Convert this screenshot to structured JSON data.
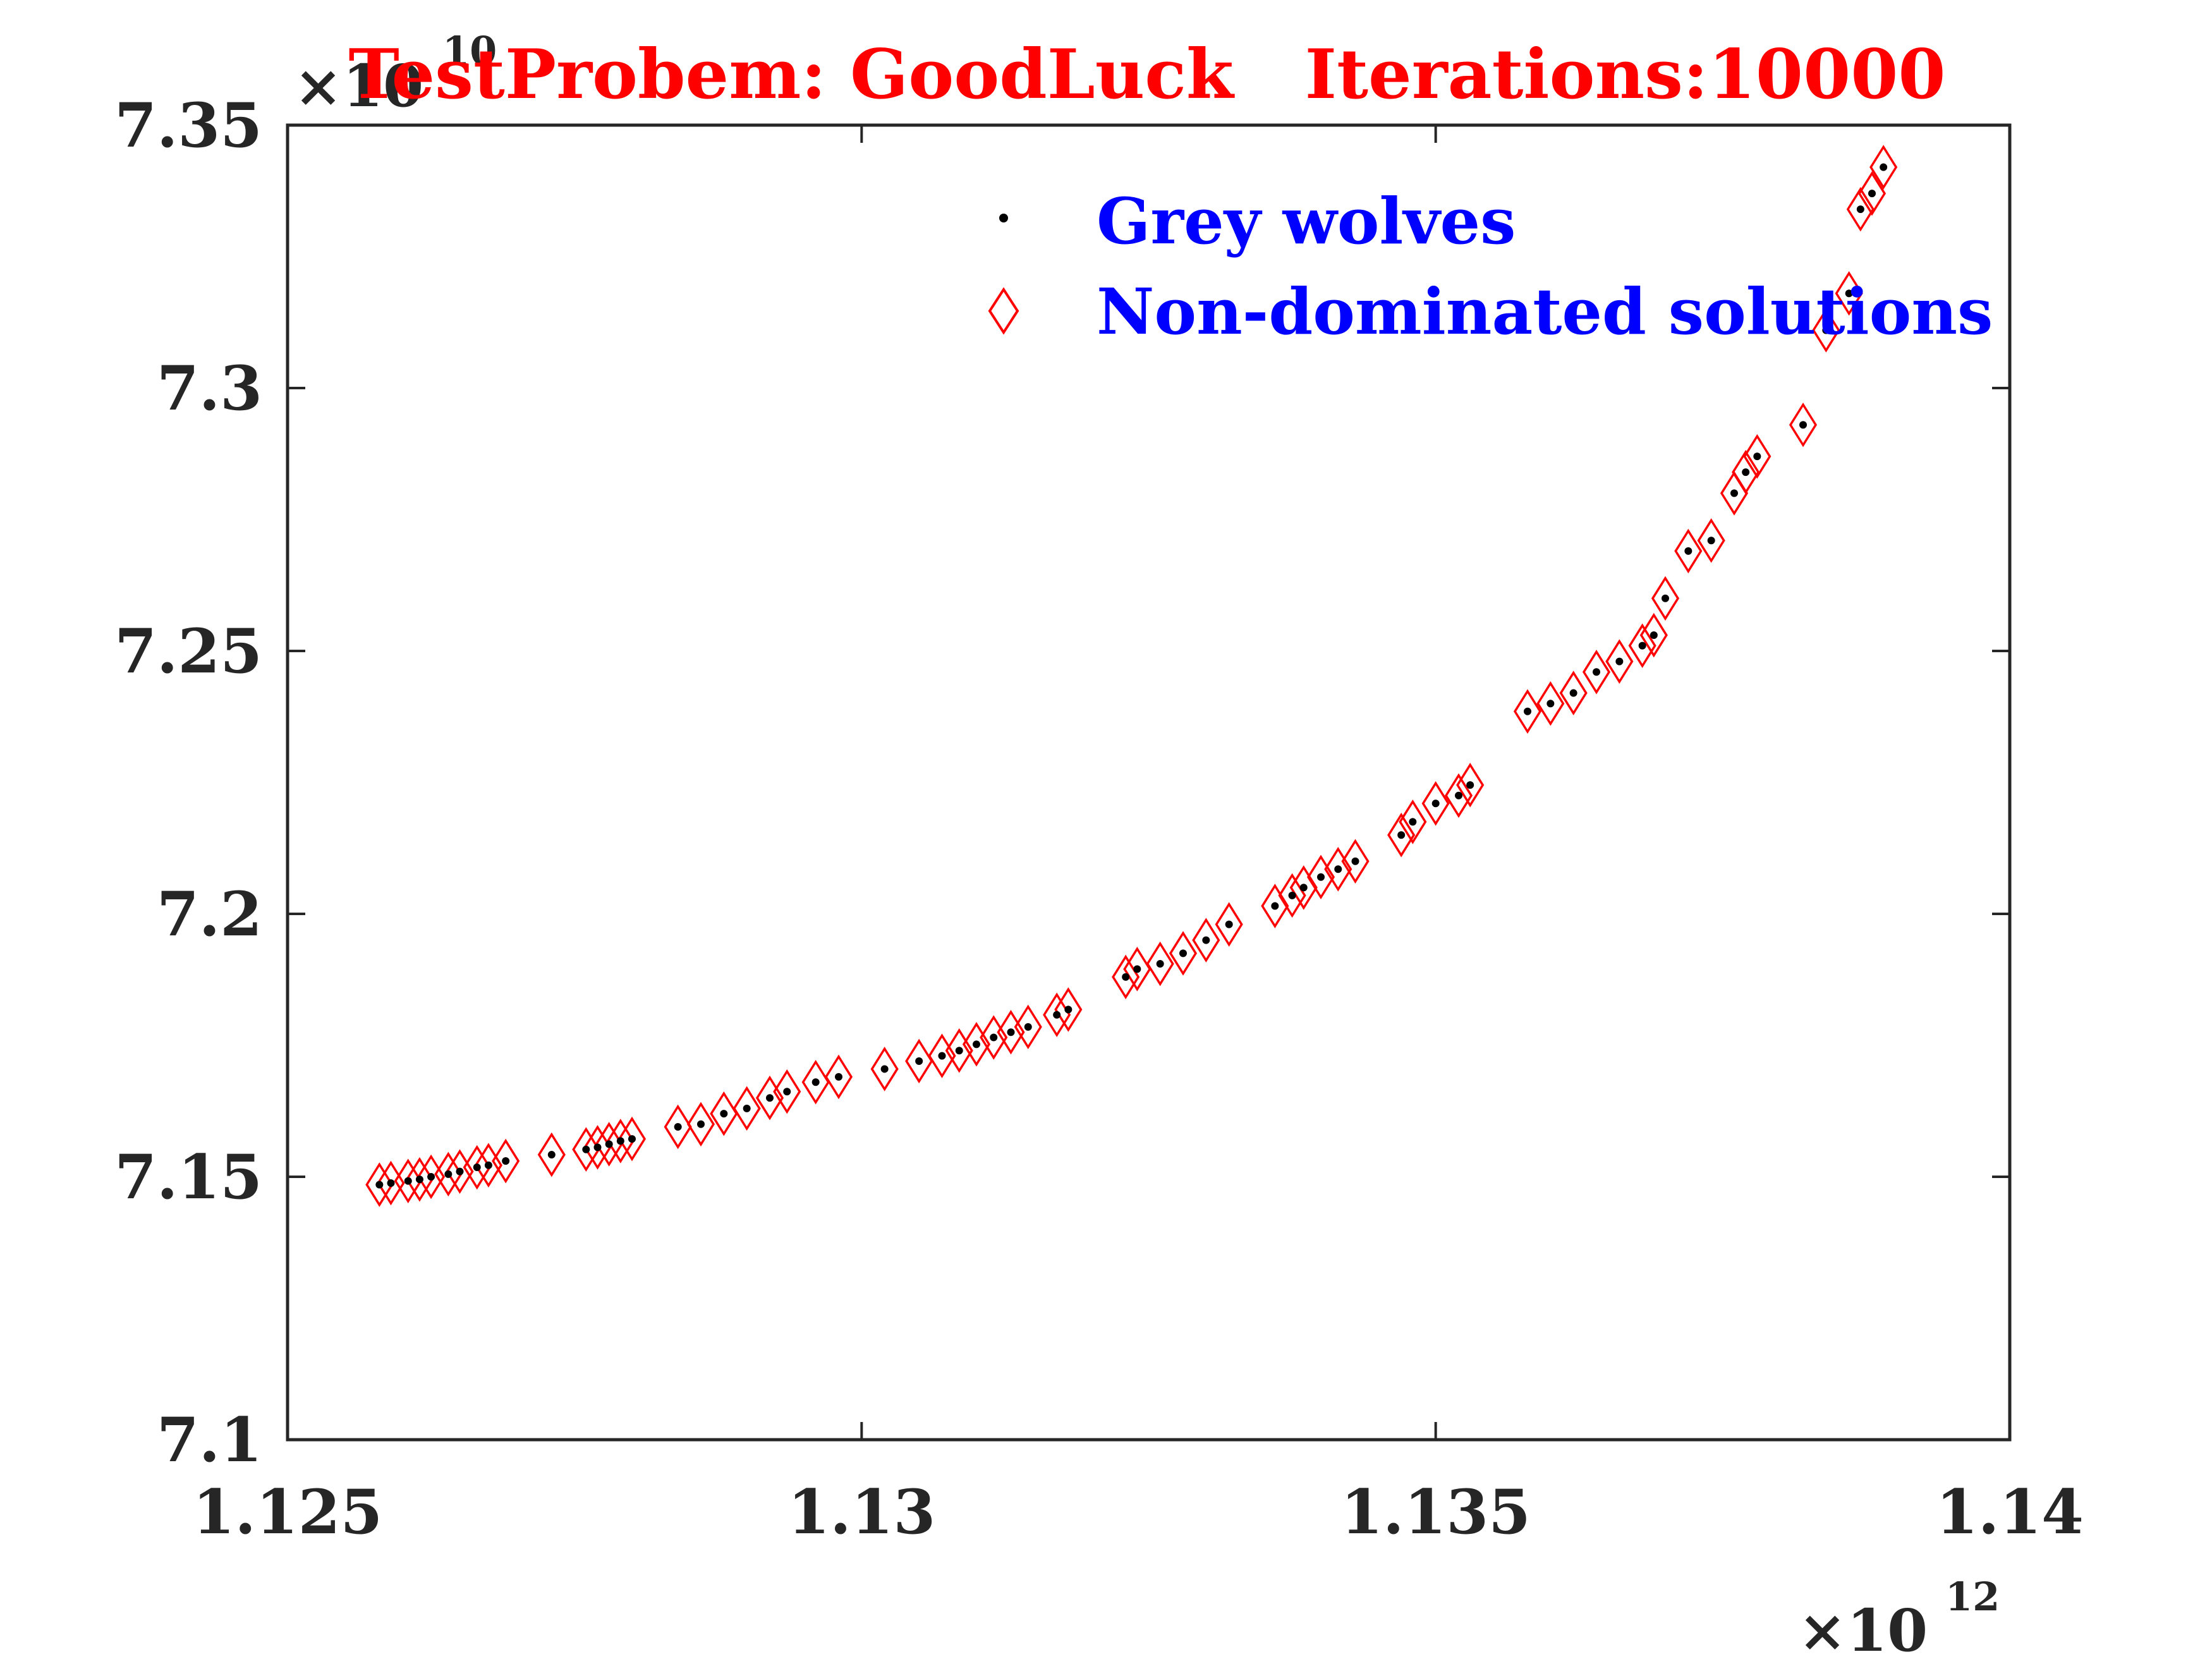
{
  "chart_data": {
    "type": "scatter",
    "title": "TestProbem: GoodLuck   Iterations:10000",
    "xlabel": "",
    "ylabel": "",
    "x_exponent_label": "×10",
    "x_exponent_power": "12",
    "y_exponent_label": "×10",
    "y_exponent_power": "10",
    "xlim": [
      1.125,
      1.14
    ],
    "ylim": [
      7.1,
      7.35
    ],
    "x_ticks": [
      1.125,
      1.13,
      1.135,
      1.14
    ],
    "x_tick_labels": [
      "1.125",
      "1.13",
      "1.135",
      "1.14"
    ],
    "y_ticks": [
      7.1,
      7.15,
      7.2,
      7.25,
      7.3,
      7.35
    ],
    "y_tick_labels": [
      "7.1",
      "7.15",
      "7.2",
      "7.25",
      "7.3",
      "7.35"
    ],
    "grid": false,
    "legend_position": "top-right",
    "colors": {
      "wolves": "#000000",
      "nondominated": "#ff0000",
      "title": "#ff0000",
      "legend_text": "#0000ff",
      "axes": "#262626"
    },
    "series": [
      {
        "name": "Grey wolves",
        "marker": "dot",
        "x": [
          1.1258,
          1.1259,
          1.12605,
          1.12615,
          1.12625,
          1.1264,
          1.1265,
          1.12665,
          1.12675,
          1.1269,
          1.1273,
          1.1276,
          1.1277,
          1.1278,
          1.1279,
          1.128,
          1.1284,
          1.1286,
          1.1288,
          1.129,
          1.1292,
          1.12935,
          1.1296,
          1.1298,
          1.1302,
          1.1305,
          1.1307,
          1.13085,
          1.131,
          1.13115,
          1.1313,
          1.13145,
          1.1317,
          1.1318,
          1.1323,
          1.1324,
          1.1326,
          1.1328,
          1.133,
          1.1332,
          1.1336,
          1.13375,
          1.13385,
          1.134,
          1.13415,
          1.1343,
          1.1347,
          1.1348,
          1.135,
          1.1352,
          1.1353,
          1.1358,
          1.136,
          1.1362,
          1.1364,
          1.1366,
          1.1368,
          1.1369,
          1.137,
          1.1372,
          1.1374,
          1.1376,
          1.1377,
          1.1378,
          1.1382,
          1.1384,
          1.1386,
          1.1387,
          1.1388,
          1.1389
        ],
        "y": [
          7.1485,
          7.1488,
          7.1492,
          7.1495,
          7.15,
          7.1505,
          7.151,
          7.1518,
          7.1522,
          7.153,
          7.1542,
          7.1552,
          7.1556,
          7.1562,
          7.1568,
          7.1572,
          7.1595,
          7.16,
          7.162,
          7.163,
          7.165,
          7.1662,
          7.168,
          7.169,
          7.1705,
          7.172,
          7.173,
          7.174,
          7.1752,
          7.1765,
          7.1775,
          7.1785,
          7.1808,
          7.1818,
          7.188,
          7.1895,
          7.1905,
          7.1925,
          7.195,
          7.198,
          7.2015,
          7.2035,
          7.205,
          7.207,
          7.2085,
          7.21,
          7.215,
          7.2175,
          7.221,
          7.2225,
          7.2245,
          7.2385,
          7.24,
          7.242,
          7.246,
          7.248,
          7.251,
          7.253,
          7.26,
          7.269,
          7.271,
          7.28,
          7.284,
          7.287,
          7.293,
          7.311,
          7.318,
          7.334,
          7.337,
          7.342
        ]
      },
      {
        "name": "Non-dominated solutions",
        "marker": "diamond",
        "x": [
          1.1258,
          1.1259,
          1.12605,
          1.12615,
          1.12625,
          1.1264,
          1.1265,
          1.12665,
          1.12675,
          1.1269,
          1.1273,
          1.1276,
          1.1277,
          1.1278,
          1.1279,
          1.128,
          1.1284,
          1.1286,
          1.1288,
          1.129,
          1.1292,
          1.12935,
          1.1296,
          1.1298,
          1.1302,
          1.1305,
          1.1307,
          1.13085,
          1.131,
          1.13115,
          1.1313,
          1.13145,
          1.1317,
          1.1318,
          1.1323,
          1.1324,
          1.1326,
          1.1328,
          1.133,
          1.1332,
          1.1336,
          1.13375,
          1.13385,
          1.134,
          1.13415,
          1.1343,
          1.1347,
          1.1348,
          1.135,
          1.1352,
          1.1353,
          1.1358,
          1.136,
          1.1362,
          1.1364,
          1.1366,
          1.1368,
          1.1369,
          1.137,
          1.1372,
          1.1374,
          1.1376,
          1.1377,
          1.1378,
          1.1382,
          1.1384,
          1.1386,
          1.1387,
          1.1388,
          1.1389
        ],
        "y": [
          7.1485,
          7.1488,
          7.1492,
          7.1495,
          7.15,
          7.1505,
          7.151,
          7.1518,
          7.1522,
          7.153,
          7.1542,
          7.1552,
          7.1556,
          7.1562,
          7.1568,
          7.1572,
          7.1595,
          7.16,
          7.162,
          7.163,
          7.165,
          7.1662,
          7.168,
          7.169,
          7.1705,
          7.172,
          7.173,
          7.174,
          7.1752,
          7.1765,
          7.1775,
          7.1785,
          7.1808,
          7.1818,
          7.188,
          7.1895,
          7.1905,
          7.1925,
          7.195,
          7.198,
          7.2015,
          7.2035,
          7.205,
          7.207,
          7.2085,
          7.21,
          7.215,
          7.2175,
          7.221,
          7.2225,
          7.2245,
          7.2385,
          7.24,
          7.242,
          7.246,
          7.248,
          7.251,
          7.253,
          7.26,
          7.269,
          7.271,
          7.28,
          7.284,
          7.287,
          7.293,
          7.311,
          7.318,
          7.334,
          7.337,
          7.342
        ]
      }
    ]
  }
}
